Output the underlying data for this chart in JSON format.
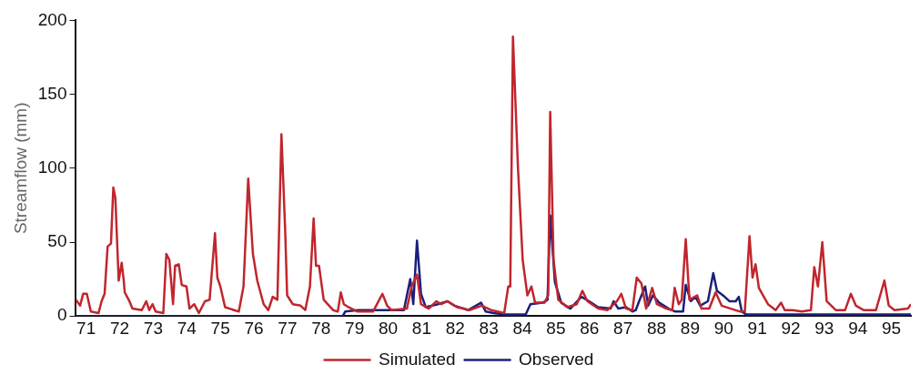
{
  "chart_data": {
    "type": "line",
    "ylabel": "Streamflow (mm)",
    "xlim": [
      70.67,
      95.58
    ],
    "ylim": [
      0,
      200
    ],
    "xticks": [
      71,
      72,
      73,
      74,
      75,
      76,
      77,
      78,
      79,
      80,
      81,
      82,
      83,
      84,
      85,
      86,
      87,
      88,
      89,
      90,
      91,
      92,
      93,
      94,
      95
    ],
    "yticks": [
      0,
      50,
      100,
      150,
      200
    ],
    "grid": false,
    "legend": "bottom",
    "marker": "none",
    "line_style": "solid",
    "series": [
      {
        "name": "Simulated",
        "color": "#c0262d",
        "x": [
          70.7,
          70.82,
          70.91,
          71.02,
          71.14,
          71.37,
          71.46,
          71.55,
          71.64,
          71.74,
          71.81,
          71.87,
          71.97,
          72.06,
          72.12,
          72.15,
          72.29,
          72.38,
          72.66,
          72.79,
          72.88,
          72.98,
          73.07,
          73.3,
          73.39,
          73.48,
          73.59,
          73.65,
          73.76,
          73.85,
          73.99,
          74.08,
          74.22,
          74.36,
          74.54,
          74.68,
          74.84,
          74.91,
          75.0,
          75.14,
          75.41,
          75.55,
          75.69,
          75.83,
          75.97,
          76.1,
          76.29,
          76.43,
          76.56,
          76.7,
          76.82,
          76.93,
          76.99,
          77.16,
          77.39,
          77.53,
          77.67,
          77.78,
          77.85,
          77.94,
          78.08,
          78.36,
          78.5,
          78.59,
          78.68,
          78.82,
          78.91,
          79.09,
          79.55,
          79.83,
          79.97,
          80.1,
          80.56,
          80.7,
          80.86,
          80.98,
          81.21,
          81.44,
          81.58,
          81.77,
          82.05,
          82.42,
          82.79,
          83.07,
          83.46,
          83.58,
          83.64,
          83.72,
          83.87,
          84.01,
          84.15,
          84.27,
          84.38,
          84.66,
          84.77,
          84.83,
          84.93,
          85.07,
          85.34,
          85.62,
          85.79,
          85.94,
          86.26,
          86.54,
          86.82,
          86.95,
          87.09,
          87.28,
          87.41,
          87.55,
          87.69,
          87.87,
          88.01,
          88.29,
          88.47,
          88.54,
          88.66,
          88.75,
          88.87,
          88.98,
          89.21,
          89.34,
          89.57,
          89.76,
          89.94,
          90.21,
          90.49,
          90.63,
          90.77,
          90.86,
          90.95,
          91.05,
          91.32,
          91.55,
          91.71,
          91.82,
          92.05,
          92.33,
          92.6,
          92.7,
          92.81,
          92.94,
          93.07,
          93.34,
          93.62,
          93.79,
          93.94,
          94.17,
          94.54,
          94.79,
          94.92,
          95.09,
          95.49,
          95.58
        ],
        "values": [
          11,
          7,
          15,
          15,
          3,
          2,
          10,
          15,
          47,
          49,
          87,
          80,
          24,
          36,
          24,
          16,
          10,
          5,
          4,
          10,
          4,
          8,
          3,
          2,
          42,
          38,
          8,
          34,
          35,
          21,
          20,
          5,
          8,
          2,
          10,
          11,
          56,
          26,
          20,
          6,
          4,
          3,
          20,
          93,
          42,
          24,
          8,
          4,
          13,
          11,
          123,
          59,
          14,
          8,
          7,
          4,
          20,
          66,
          34,
          34,
          11,
          4,
          3,
          16,
          8,
          6,
          5,
          3,
          3,
          15,
          7,
          4,
          5,
          20,
          28,
          8,
          5,
          10,
          8,
          10,
          6,
          4,
          7,
          4,
          2,
          20,
          20,
          189,
          100,
          38,
          14,
          20,
          9,
          9,
          14,
          138,
          38,
          11,
          6,
          8,
          17,
          10,
          5,
          4,
          10,
          15,
          5,
          4,
          26,
          22,
          5,
          19,
          8,
          5,
          4,
          19,
          8,
          11,
          52,
          11,
          14,
          5,
          5,
          16,
          7,
          5,
          3,
          3,
          54,
          26,
          35,
          19,
          8,
          4,
          9,
          4,
          4,
          3,
          4,
          33,
          20,
          50,
          10,
          4,
          4,
          15,
          7,
          4,
          4,
          24,
          7,
          4,
          5,
          8
        ]
      },
      {
        "name": "Observed",
        "color": "#1c1f7a",
        "x": [
          70.7,
          78.65,
          78.72,
          79.09,
          79.6,
          80.47,
          80.66,
          80.75,
          80.86,
          80.98,
          81.12,
          81.48,
          81.77,
          81.98,
          82.39,
          82.77,
          82.91,
          83.14,
          83.51,
          84.1,
          84.24,
          84.61,
          84.75,
          84.83,
          84.97,
          85.16,
          85.43,
          85.76,
          85.99,
          86.26,
          86.63,
          86.72,
          86.86,
          87.09,
          87.28,
          87.38,
          87.48,
          87.66,
          87.75,
          87.89,
          88.08,
          88.36,
          88.56,
          88.79,
          88.87,
          89.02,
          89.16,
          89.3,
          89.53,
          89.69,
          89.8,
          90.03,
          90.17,
          90.36,
          90.45,
          90.54,
          90.68,
          95.58
        ],
        "values": [
          0,
          0,
          3,
          4,
          4,
          4,
          25,
          8,
          51,
          15,
          6,
          8,
          10,
          7,
          4,
          9,
          3,
          2,
          1,
          1,
          8,
          9,
          11,
          68,
          23,
          9,
          5,
          13,
          10,
          6,
          5,
          10,
          5,
          6,
          3,
          4,
          10,
          20,
          7,
          14,
          9,
          5,
          3,
          3,
          21,
          10,
          13,
          7,
          10,
          29,
          17,
          13,
          10,
          10,
          13,
          3,
          1,
          1
        ]
      }
    ]
  }
}
